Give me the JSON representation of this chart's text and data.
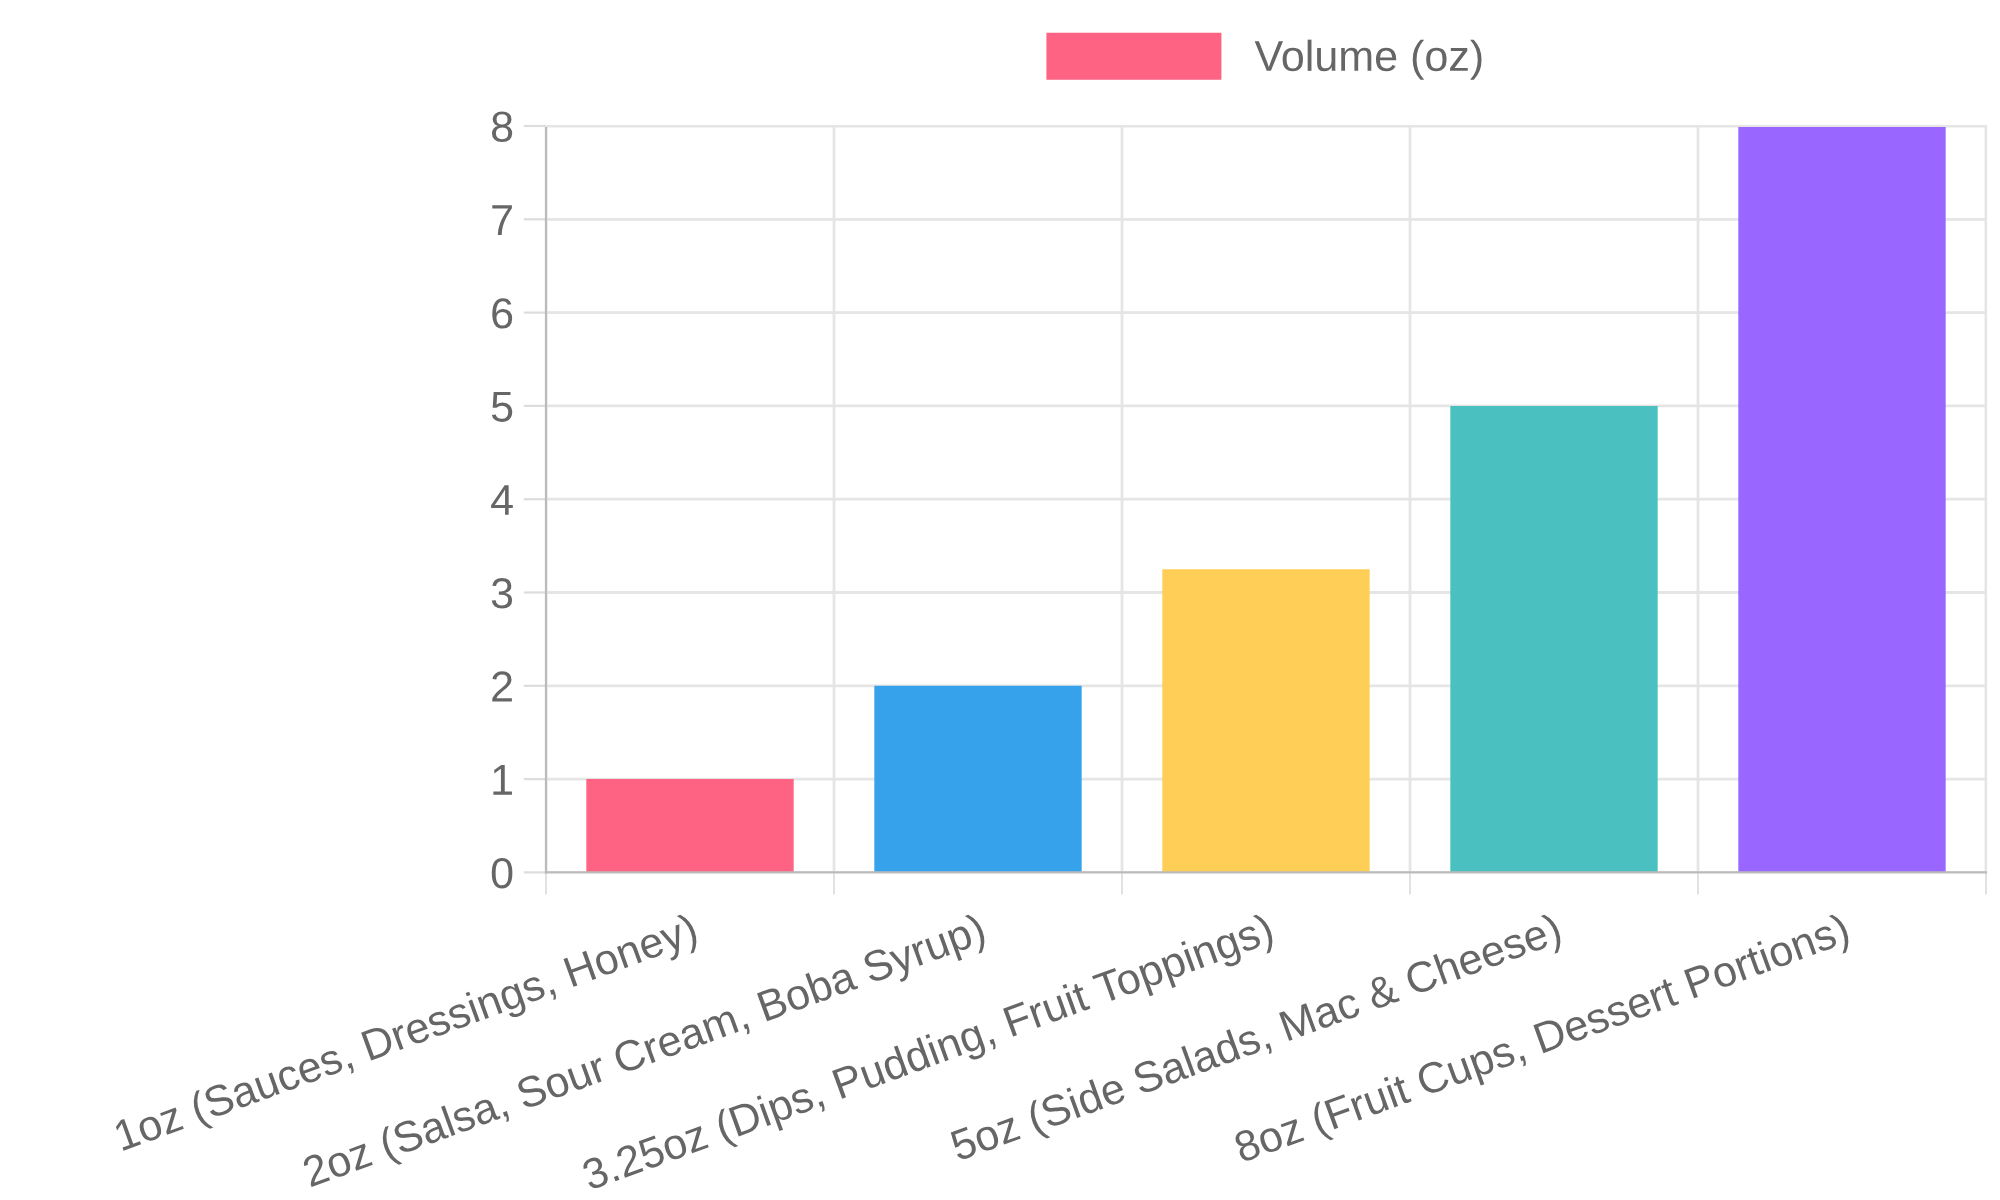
{
  "chart_data": {
    "type": "bar",
    "categories": [
      "1oz (Sauces, Dressings, Honey)",
      "2oz (Salsa, Sour Cream, Boba Syrup)",
      "3.25oz (Dips, Pudding, Fruit Toppings)",
      "5oz (Side Salads, Mac & Cheese)",
      "8oz (Fruit Cups, Dessert Portions)"
    ],
    "series": [
      {
        "name": "Volume (oz)",
        "values": [
          1,
          2,
          3.25,
          5,
          8
        ],
        "colors": [
          "#ff6384",
          "#36a2eb",
          "#ffce56",
          "#4bc0c0",
          "#9966ff"
        ]
      }
    ],
    "ylim": [
      0,
      8
    ],
    "yticks": [
      0,
      1,
      2,
      3,
      4,
      5,
      6,
      7,
      8
    ],
    "grid": true,
    "legend": "top"
  }
}
